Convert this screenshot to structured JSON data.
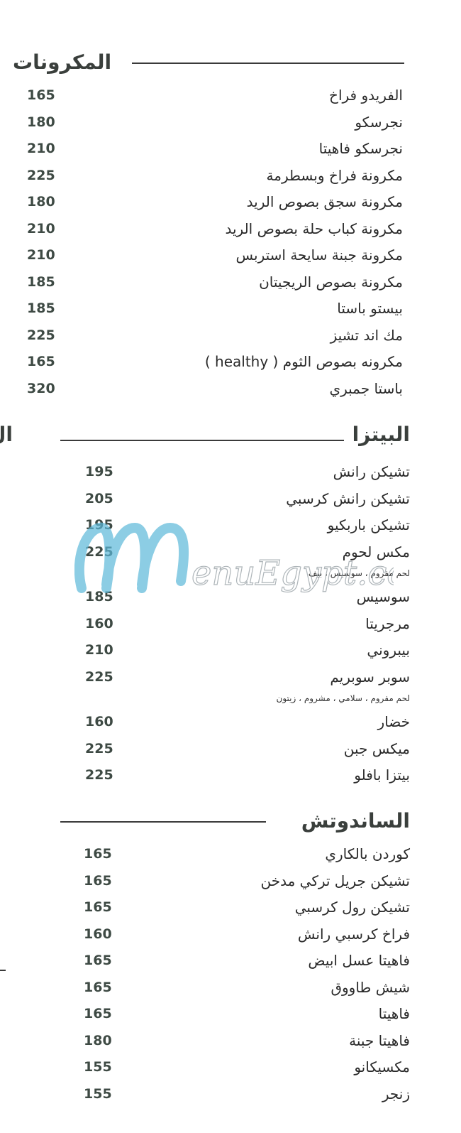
{
  "sections": [
    {
      "title": "المكرونات",
      "items": [
        {
          "name": "الفريدو فراخ",
          "price": "165"
        },
        {
          "name": "نجرسكو",
          "price": "180"
        },
        {
          "name": "نجرسكو فاهيتا",
          "price": "210"
        },
        {
          "name": "مكرونة فراخ وبسطرمة",
          "price": "225"
        },
        {
          "name": "مكرونة سجق بصوص الريد",
          "price": "180"
        },
        {
          "name": "مكرونة كباب حلة بصوص الريد",
          "price": "210"
        },
        {
          "name": "مكرونة جبنة سايحة استربس",
          "price": "210"
        },
        {
          "name": "مكرونة بصوص الريجيتان",
          "price": "185"
        },
        {
          "name": "بيستو باستا",
          "price": "185"
        },
        {
          "name": "مك اند تشيز",
          "price": "225"
        },
        {
          "name": "مكرونه بصوص الثوم ( healthy )",
          "price": "165"
        },
        {
          "name": "باستا جمبري",
          "price": "320"
        }
      ]
    },
    {
      "title": "البيتزا",
      "items": [
        {
          "name": "تشيكن رانش",
          "price": "195"
        },
        {
          "name": "تشيكن رانش كرسبي",
          "price": "205"
        },
        {
          "name": "تشيكن باربكيو",
          "price": "195"
        },
        {
          "name": "مكس لحوم",
          "price": "225",
          "desc": "لحم مفروم ، سوسيس ، بيف"
        },
        {
          "name": "سوسيس",
          "price": "185"
        },
        {
          "name": "مرجريتا",
          "price": "160"
        },
        {
          "name": "بيبروني",
          "price": "210"
        },
        {
          "name": "سوبر سوبريم",
          "price": "225",
          "desc": "لحم مفروم ، سلامي ، مشروم ، زيتون"
        },
        {
          "name": "خضار",
          "price": "160"
        },
        {
          "name": "ميكس جبن",
          "price": "225"
        },
        {
          "name": "بيتزا بافلو",
          "price": "225"
        }
      ]
    },
    {
      "title": "الساندوتش",
      "items": [
        {
          "name": "كوردن بالكاري",
          "price": "165"
        },
        {
          "name": "تشيكن جريل تركي مدخن",
          "price": "165"
        },
        {
          "name": "تشيكن رول كرسبي",
          "price": "165"
        },
        {
          "name": "فراخ كرسبي رانش",
          "price": "160"
        },
        {
          "name": "فاهيتا عسل ابيض",
          "price": "165"
        },
        {
          "name": "شيش طاووق",
          "price": "165"
        },
        {
          "name": "فاهيتا",
          "price": "165"
        },
        {
          "name": "فاهيتا جبنة",
          "price": "180"
        },
        {
          "name": "مكسيكانو",
          "price": "155"
        },
        {
          "name": "زنجر",
          "price": "155"
        }
      ]
    }
  ],
  "cut_off_title": "ال",
  "watermark": "MenuEgypt.com",
  "colors": {
    "text": "#2a2a2a",
    "price": "#3e4a44",
    "watermark": "#5bb8d8"
  }
}
